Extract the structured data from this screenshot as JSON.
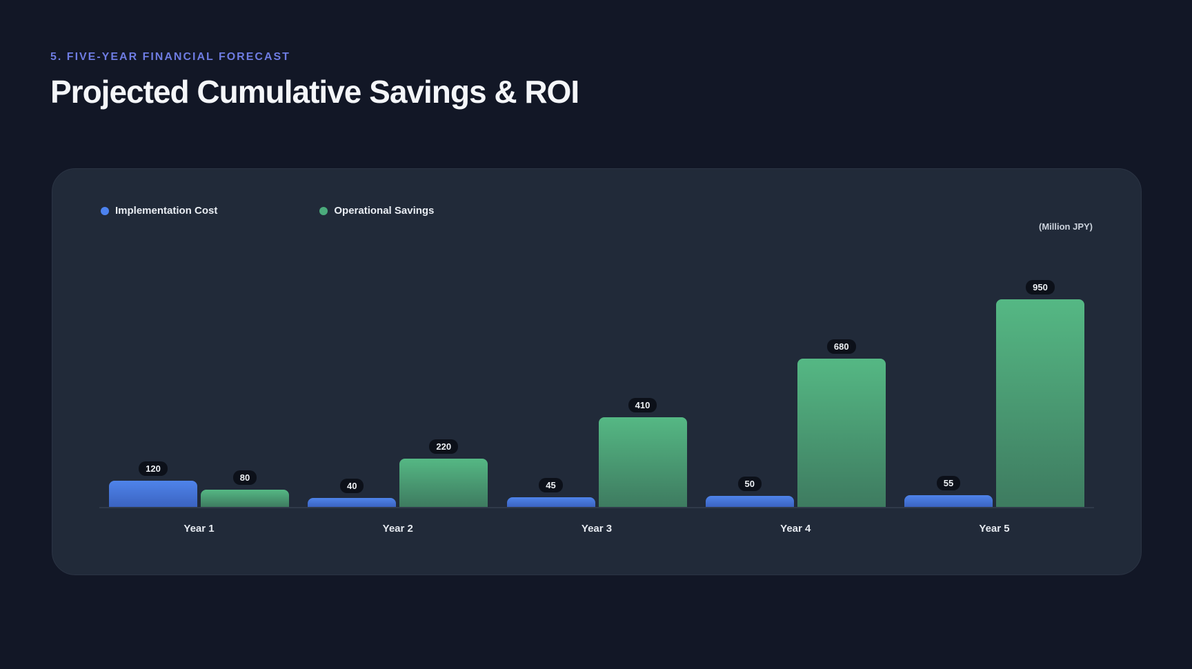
{
  "header": {
    "eyebrow": "5. FIVE-YEAR FINANCIAL FORECAST",
    "title": "Projected Cumulative Savings & ROI"
  },
  "colors": {
    "page_background": "#121726",
    "panel_background": "#212a39",
    "cost_bar_top": "#4f84ea",
    "cost_bar_bottom": "#3b63c1",
    "cost_dot": "#4c82ef",
    "savings_bar_top": "#55b884",
    "savings_bar_bottom": "#3e7b60",
    "savings_dot": "#4bab7c",
    "eyebrow_text": "#6e7ce2"
  },
  "chart_data": {
    "type": "bar",
    "title": "Projected Cumulative Savings & ROI",
    "unit_label": "(Million JPY)",
    "categories": [
      "Year 1",
      "Year 2",
      "Year 3",
      "Year 4",
      "Year 5"
    ],
    "series": [
      {
        "name": "Implementation Cost",
        "dot_color": "#4c82ef",
        "gradient_top": "#4f84ea",
        "gradient_bottom": "#3b63c1",
        "values": [
          120,
          40,
          45,
          50,
          55
        ]
      },
      {
        "name": "Operational Savings",
        "dot_color": "#4bab7c",
        "gradient_top": "#55b884",
        "gradient_bottom": "#3e7b60",
        "values": [
          80,
          220,
          410,
          680,
          950
        ]
      }
    ],
    "ylim": [
      0,
      1000
    ],
    "grid": false,
    "legend_position": "top-left",
    "value_labels": "above-bars"
  }
}
